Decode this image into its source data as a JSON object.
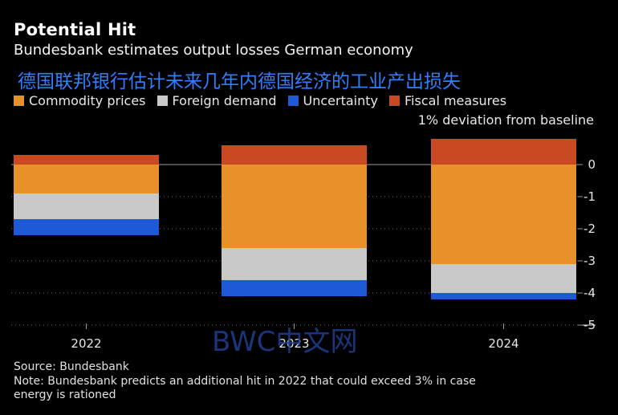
{
  "header": {
    "title": "Potential Hit",
    "subtitle": "Bundesbank estimates output losses German economy",
    "subtitle_cn": "德国联邦银行估计未来几年内德国经济的工业产出损失"
  },
  "legend": [
    {
      "label": "Commodity prices",
      "color": "#e8912b"
    },
    {
      "label": "Foreign demand",
      "color": "#c8c8c8"
    },
    {
      "label": "Uncertainty",
      "color": "#1f5ad6"
    },
    {
      "label": "Fiscal measures",
      "color": "#c94a22"
    }
  ],
  "unit_note": "1% deviation from baseline",
  "watermark": "BWC中文网",
  "footer": {
    "source": "Source: Bundesbank",
    "note": "Note: Bundesbank predicts an additional hit in 2022 that could exceed 3% in case energy is rationed"
  },
  "chart_data": {
    "type": "bar",
    "stacked": true,
    "title": "Potential Hit",
    "ylabel": "1% deviation from baseline",
    "ylim": [
      -5,
      0.5
    ],
    "yticks": [
      0,
      -1,
      -2,
      -3,
      -4,
      -5
    ],
    "categories": [
      "2022",
      "2023",
      "2024"
    ],
    "series": [
      {
        "name": "Commodity prices",
        "color": "#e8912b",
        "values": [
          -0.9,
          -2.6,
          -3.1
        ]
      },
      {
        "name": "Foreign demand",
        "color": "#c8c8c8",
        "values": [
          -0.8,
          -1.0,
          -0.9
        ]
      },
      {
        "name": "Uncertainty",
        "color": "#1f5ad6",
        "values": [
          -0.5,
          -0.5,
          -0.2
        ]
      },
      {
        "name": "Fiscal measures",
        "color": "#c94a22",
        "values": [
          0.3,
          0.6,
          0.8
        ]
      }
    ]
  }
}
